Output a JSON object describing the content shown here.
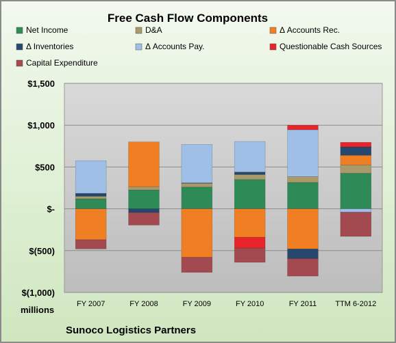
{
  "chart_data": {
    "type": "bar",
    "stacked": true,
    "title": "Free Cash Flow Components",
    "units_label": "millions",
    "footer": "Sunoco Logistics Partners",
    "categories": [
      "FY 2007",
      "FY 2008",
      "FY 2009",
      "FY 2010",
      "FY 2011",
      "TTM 6-2012"
    ],
    "ylim": [
      -1000,
      1500
    ],
    "yticks": [
      {
        "value": 1500,
        "label": "$1,500"
      },
      {
        "value": 1000,
        "label": "$1,000"
      },
      {
        "value": 500,
        "label": "$500"
      },
      {
        "value": 0,
        "label": "$-"
      },
      {
        "value": -500,
        "label": "$(500)"
      },
      {
        "value": -1000,
        "label": "$(1,000)"
      }
    ],
    "grid": true,
    "legend_position": "top",
    "series": [
      {
        "name": "Net Income",
        "color": "#2e8b57",
        "values": [
          120,
          225,
          260,
          350,
          315,
          425
        ]
      },
      {
        "name": "D&A",
        "color": "#a89a6a",
        "values": [
          30,
          40,
          45,
          60,
          70,
          100
        ]
      },
      {
        "name": "Δ Accounts Rec.",
        "color": "#ef7f22",
        "values": [
          -370,
          535,
          -580,
          -340,
          -480,
          115
        ]
      },
      {
        "name": "Δ Inventories",
        "color": "#27486e",
        "values": [
          35,
          -45,
          5,
          30,
          -115,
          100
        ]
      },
      {
        "name": "Δ Accounts Pay.",
        "color": "#9fbfe6",
        "values": [
          390,
          0,
          460,
          365,
          560,
          -40
        ]
      },
      {
        "name": "Questionable Cash Sources",
        "color": "#e8252a",
        "values": [
          0,
          0,
          0,
          -130,
          55,
          55
        ]
      },
      {
        "name": "Capital Expenditure",
        "color": "#a24a4f",
        "values": [
          -110,
          -150,
          -180,
          -170,
          -210,
          -290
        ]
      }
    ]
  }
}
